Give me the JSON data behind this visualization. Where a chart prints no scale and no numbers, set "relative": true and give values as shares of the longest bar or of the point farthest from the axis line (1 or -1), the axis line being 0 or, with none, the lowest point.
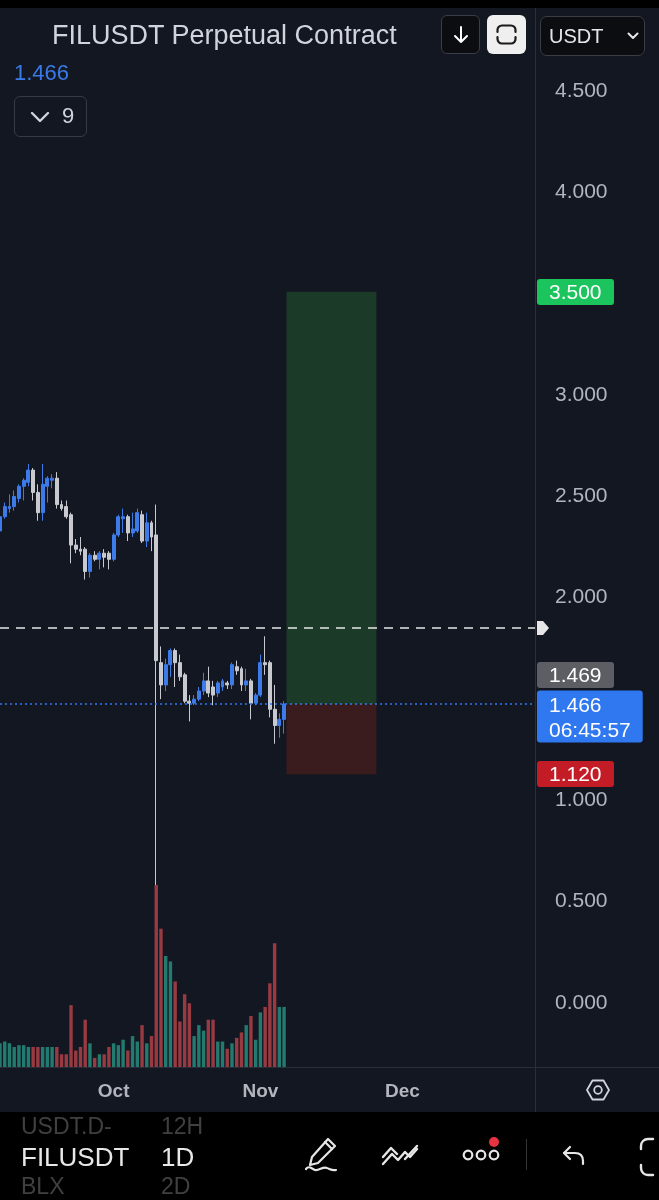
{
  "chart_data": [
    {
      "type": "candlestick",
      "title": "FILUSDT Perpetual Contract",
      "subtitle": "1.466",
      "ylabel": "USDT",
      "x": [
        "--09-07",
        "--09-08",
        "--09-09",
        "--09-10",
        "--09-11",
        "--09-12",
        "--09-13",
        "--09-14",
        "--09-15",
        "--09-16",
        "--09-17",
        "--09-18",
        "--09-19",
        "--09-20",
        "--09-21",
        "--09-22",
        "--09-23",
        "--09-24",
        "--09-25",
        "--09-26",
        "--09-27",
        "--09-28",
        "--09-29",
        "--09-30",
        "--10-01",
        "--10-02",
        "--10-03",
        "--10-04",
        "--10-05",
        "--10-06",
        "--10-07",
        "--10-08",
        "--10-09",
        "--10-10",
        "--10-11",
        "--10-12",
        "--10-13",
        "--10-14",
        "--10-15",
        "--10-16",
        "--10-17",
        "--10-18",
        "--10-19",
        "--10-20",
        "--10-21",
        "--10-22",
        "--10-23",
        "--10-24",
        "--10-25",
        "--10-26",
        "--10-27",
        "--10-28",
        "--10-29",
        "--10-30",
        "--10-31",
        "--11-01",
        "--11-02",
        "--11-03",
        "--11-04",
        "--11-05",
        "--11-06"
      ],
      "ohlc": [
        [
          2.32,
          2.41,
          2.31,
          2.39
        ],
        [
          2.39,
          2.46,
          2.38,
          2.44
        ],
        [
          2.43,
          2.5,
          2.41,
          2.44
        ],
        [
          2.44,
          2.52,
          2.42,
          2.49
        ],
        [
          2.48,
          2.55,
          2.46,
          2.54
        ],
        [
          2.54,
          2.58,
          2.47,
          2.57
        ],
        [
          2.56,
          2.65,
          2.54,
          2.62
        ],
        [
          2.62,
          2.63,
          2.47,
          2.51
        ],
        [
          2.51,
          2.55,
          2.37,
          2.41
        ],
        [
          2.41,
          2.65,
          2.37,
          2.55
        ],
        [
          2.54,
          2.59,
          2.46,
          2.58
        ],
        [
          2.57,
          2.6,
          2.53,
          2.58
        ],
        [
          2.58,
          2.61,
          2.43,
          2.45
        ],
        [
          2.45,
          2.47,
          2.42,
          2.43
        ],
        [
          2.44,
          2.47,
          2.38,
          2.39
        ],
        [
          2.4,
          2.41,
          2.16,
          2.25
        ],
        [
          2.25,
          2.28,
          2.21,
          2.23
        ],
        [
          2.23,
          2.29,
          2.2,
          2.22
        ],
        [
          2.23,
          2.24,
          2.08,
          2.12
        ],
        [
          2.12,
          2.21,
          2.09,
          2.2
        ],
        [
          2.2,
          2.22,
          2.17,
          2.18
        ],
        [
          2.18,
          2.22,
          2.13,
          2.21
        ],
        [
          2.21,
          2.23,
          2.14,
          2.19
        ],
        [
          2.21,
          2.22,
          2.13,
          2.18
        ],
        [
          2.18,
          2.31,
          2.17,
          2.3
        ],
        [
          2.3,
          2.4,
          2.29,
          2.39
        ],
        [
          2.38,
          2.43,
          2.31,
          2.39
        ],
        [
          2.39,
          2.4,
          2.27,
          2.31
        ],
        [
          2.31,
          2.41,
          2.29,
          2.33
        ],
        [
          2.32,
          2.43,
          2.31,
          2.41
        ],
        [
          2.4,
          2.42,
          2.26,
          2.27
        ],
        [
          2.27,
          2.41,
          2.24,
          2.36
        ],
        [
          2.36,
          2.37,
          2.22,
          2.29
        ],
        [
          2.3,
          2.45,
          0.57,
          1.68
        ],
        [
          1.67,
          1.75,
          1.49,
          1.56
        ],
        [
          1.56,
          1.69,
          1.53,
          1.66
        ],
        [
          1.66,
          1.74,
          1.6,
          1.73
        ],
        [
          1.73,
          1.74,
          1.55,
          1.67
        ],
        [
          1.67,
          1.71,
          1.58,
          1.6
        ],
        [
          1.61,
          1.62,
          1.47,
          1.48
        ],
        [
          1.48,
          1.51,
          1.38,
          1.47
        ],
        [
          1.47,
          1.51,
          1.46,
          1.49
        ],
        [
          1.49,
          1.55,
          1.48,
          1.53
        ],
        [
          1.53,
          1.62,
          1.51,
          1.58
        ],
        [
          1.58,
          1.65,
          1.5,
          1.52
        ],
        [
          1.55,
          1.58,
          1.46,
          1.51
        ],
        [
          1.52,
          1.58,
          1.5,
          1.57
        ],
        [
          1.55,
          1.59,
          1.53,
          1.58
        ],
        [
          1.57,
          1.58,
          1.54,
          1.56
        ],
        [
          1.56,
          1.67,
          1.54,
          1.66
        ],
        [
          1.65,
          1.68,
          1.61,
          1.63
        ],
        [
          1.64,
          1.65,
          1.53,
          1.56
        ],
        [
          1.56,
          1.64,
          1.53,
          1.58
        ],
        [
          1.58,
          1.59,
          1.39,
          1.47
        ],
        [
          1.47,
          1.52,
          1.46,
          1.51
        ],
        [
          1.51,
          1.71,
          1.5,
          1.67
        ],
        [
          1.67,
          1.8,
          1.61,
          1.66
        ],
        [
          1.67,
          1.68,
          1.4,
          1.44
        ],
        [
          1.44,
          1.56,
          1.27,
          1.36
        ],
        [
          1.36,
          1.42,
          1.3,
          1.39
        ],
        [
          1.39,
          1.48,
          1.32,
          1.466
        ]
      ],
      "colors": [
        "#3d7be9",
        "#3d7be9",
        "#3d7be9",
        "#3d7be9",
        "#3d7be9",
        "#3d7be9",
        "#3d7be9",
        "#c8cad0",
        "#c8cad0",
        "#3d7be9",
        "#3d7be9",
        "#3d7be9",
        "#c8cad0",
        "#c8cad0",
        "#c8cad0",
        "#c8cad0",
        "#c8cad0",
        "#c8cad0",
        "#c8cad0",
        "#3d7be9",
        "#c8cad0",
        "#3d7be9",
        "#c8cad0",
        "#c8cad0",
        "#3d7be9",
        "#3d7be9",
        "#3d7be9",
        "#c8cad0",
        "#3d7be9",
        "#3d7be9",
        "#c8cad0",
        "#3d7be9",
        "#c8cad0",
        "#c8cad0",
        "#c8cad0",
        "#3d7be9",
        "#3d7be9",
        "#c8cad0",
        "#c8cad0",
        "#c8cad0",
        "#c8cad0",
        "#3d7be9",
        "#3d7be9",
        "#3d7be9",
        "#c8cad0",
        "#c8cad0",
        "#3d7be9",
        "#3d7be9",
        "#c8cad0",
        "#3d7be9",
        "#c8cad0",
        "#c8cad0",
        "#3d7be9",
        "#c8cad0",
        "#3d7be9",
        "#3d7be9",
        "#c8cad0",
        "#c8cad0",
        "#c8cad0",
        "#3d7be9",
        "#3d7be9"
      ],
      "series": [
        {
          "type": "bar",
          "x": [
            "--11-16"
          ],
          "base": [
            1.466
          ],
          "values": [
            2.034
          ],
          "color": "#1b3a27"
        },
        {
          "type": "bar",
          "x": [
            "--11-16"
          ],
          "base": [
            1.12
          ],
          "values": [
            0.346
          ],
          "color": "#3b1c1e"
        }
      ],
      "xlim": [
        "--09-07",
        "--12-29"
      ],
      "xticks": [
        {
          "value": "--10-01",
          "label": "Oct"
        },
        {
          "value": "--11-01",
          "label": "Nov"
        },
        {
          "value": "--12-01",
          "label": "Dec"
        }
      ],
      "ylim": [
        -0.325,
        4.9
      ],
      "yticks": [
        {
          "value": 0,
          "label": "0.000"
        },
        {
          "value": 0.5,
          "label": "0.500"
        },
        {
          "value": 1,
          "label": "1.000"
        },
        {
          "value": 2,
          "label": "2.000"
        },
        {
          "value": 2.5,
          "label": "2.500"
        },
        {
          "value": 3,
          "label": "3.000"
        },
        {
          "value": 4,
          "label": "4.000"
        },
        {
          "value": 4.5,
          "label": "4.500"
        }
      ],
      "ref_lines": [
        {
          "axis": "y",
          "value": 1.84,
          "color": "#e6e6e6",
          "line_style": "dashed"
        },
        {
          "axis": "y",
          "value": 1.466,
          "label": "1.466\n06:45:57",
          "color": "#2f78f0",
          "line_style": "dotted"
        }
      ],
      "annotations": [
        "9",
        "FILUSDT",
        "1D",
        "USDT.D-",
        "12H",
        "BLX",
        "2D",
        "3.500",
        "1.469",
        "1.120"
      ]
    },
    {
      "type": "bar",
      "relative": true,
      "tick_labels": false,
      "x": [
        "--09-07",
        "--09-08",
        "--09-09",
        "--09-10",
        "--09-11",
        "--09-12",
        "--09-13",
        "--09-14",
        "--09-15",
        "--09-16",
        "--09-17",
        "--09-18",
        "--09-19",
        "--09-20",
        "--09-21",
        "--09-22",
        "--09-23",
        "--09-24",
        "--09-25",
        "--09-26",
        "--09-27",
        "--09-28",
        "--09-29",
        "--09-30",
        "--10-01",
        "--10-02",
        "--10-03",
        "--10-04",
        "--10-05",
        "--10-06",
        "--10-07",
        "--10-08",
        "--10-09",
        "--10-10",
        "--10-11",
        "--10-12",
        "--10-13",
        "--10-14",
        "--10-15",
        "--10-16",
        "--10-17",
        "--10-18",
        "--10-19",
        "--10-20",
        "--10-21",
        "--10-22",
        "--10-23",
        "--10-24",
        "--10-25",
        "--10-26",
        "--10-27",
        "--10-28",
        "--10-29",
        "--10-30",
        "--10-31",
        "--11-01",
        "--11-02",
        "--11-03",
        "--11-04",
        "--11-05",
        "--11-06"
      ],
      "values": [
        0.13,
        0.14,
        0.13,
        0.11,
        0.12,
        0.12,
        0.11,
        0.11,
        0.11,
        0.11,
        0.11,
        0.11,
        0.11,
        0.07,
        0.07,
        0.34,
        0.09,
        0.11,
        0.26,
        0.13,
        0.05,
        0.07,
        0.07,
        0.11,
        0.13,
        0.12,
        0.15,
        0.09,
        0.17,
        0.14,
        0.23,
        0.13,
        0.17,
        1,
        0.76,
        0.61,
        0.58,
        0.47,
        0.25,
        0.4,
        0.35,
        0.17,
        0.23,
        0.2,
        0.26,
        0.26,
        0.14,
        0.14,
        0.1,
        0.13,
        0.16,
        0.19,
        0.23,
        0.28,
        0.15,
        0.3,
        0.33,
        0.46,
        0.68,
        0.33,
        0.33
      ],
      "colors": [
        "#237a6e",
        "#237a6e",
        "#237a6e",
        "#237a6e",
        "#237a6e",
        "#237a6e",
        "#237a6e",
        "#973a41",
        "#973a41",
        "#237a6e",
        "#237a6e",
        "#237a6e",
        "#973a41",
        "#973a41",
        "#973a41",
        "#973a41",
        "#973a41",
        "#973a41",
        "#973a41",
        "#237a6e",
        "#973a41",
        "#237a6e",
        "#973a41",
        "#973a41",
        "#237a6e",
        "#237a6e",
        "#237a6e",
        "#973a41",
        "#237a6e",
        "#237a6e",
        "#973a41",
        "#237a6e",
        "#973a41",
        "#973a41",
        "#973a41",
        "#237a6e",
        "#237a6e",
        "#973a41",
        "#973a41",
        "#973a41",
        "#973a41",
        "#237a6e",
        "#237a6e",
        "#237a6e",
        "#973a41",
        "#973a41",
        "#237a6e",
        "#237a6e",
        "#973a41",
        "#237a6e",
        "#973a41",
        "#973a41",
        "#237a6e",
        "#973a41",
        "#237a6e",
        "#237a6e",
        "#973a41",
        "#973a41",
        "#973a41",
        "#237a6e",
        "#237a6e"
      ],
      "xlim": [
        "--09-07",
        "--12-29"
      ]
    }
  ]
}
